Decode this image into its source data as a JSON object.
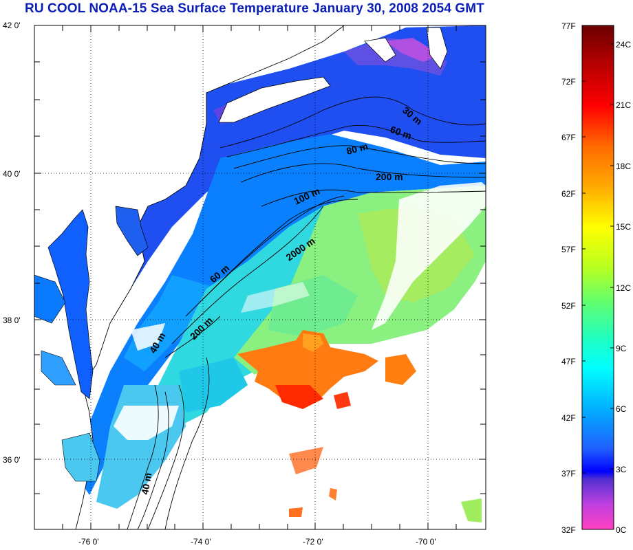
{
  "title": "RU COOL  NOAA-15 Sea Surface Temperature January 30, 2008 2054 GMT",
  "latitude_labels": [
    "42 0'",
    "40 0'",
    "38 0'",
    "36 0'"
  ],
  "longitude_labels": [
    "-76 0'",
    "-74 0'",
    "-72 0'",
    "-70 0'"
  ],
  "contour_labels": [
    "30 m",
    "60 m",
    "80 m",
    "200 m",
    "100 m",
    "2000 m",
    "60 m",
    "200 m",
    "40 m",
    "40 m"
  ],
  "colorbar": {
    "fahrenheit_labels": [
      "77F",
      "72F",
      "67F",
      "62F",
      "57F",
      "52F",
      "47F",
      "42F",
      "37F",
      "32F"
    ],
    "celsius_labels": [
      "24C",
      "21C",
      "18C",
      "15C",
      "12C",
      "9C",
      "6C",
      "3C",
      "0C"
    ],
    "colors": [
      "#6a0000",
      "#b00000",
      "#ff0000",
      "#ff6a00",
      "#ffaa00",
      "#ffff00",
      "#9aff3a",
      "#35ffa0",
      "#00ffff",
      "#00aaff",
      "#1060ff",
      "#0000ff",
      "#7a30c8",
      "#c040e0",
      "#ff40c0"
    ]
  },
  "colors": {
    "title": "#0b1fb8",
    "land": "#ffffff",
    "coast": "#000000"
  }
}
